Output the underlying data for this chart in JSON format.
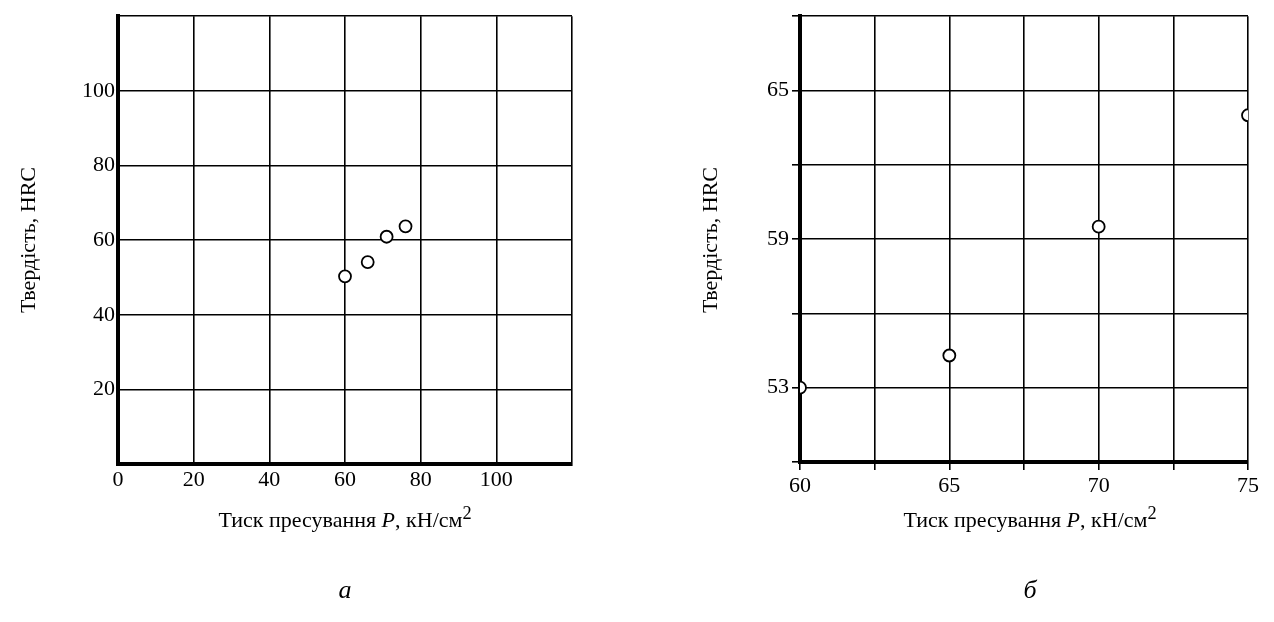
{
  "chart_data": [
    {
      "type": "scatter",
      "xlabel": "Тиск пресування P, кН/см$^{2}$",
      "ylabel": "Твердість, HRC",
      "annotations": [
        "а"
      ],
      "x": [
        60,
        66,
        71,
        76
      ],
      "values": [
        50.3,
        54.1,
        60.9,
        63.7
      ],
      "color": "#000000",
      "marker": "circle",
      "grid": true,
      "legend": false,
      "xlim": [
        0,
        120
      ],
      "xticks": [
        0,
        20,
        40,
        60,
        80,
        100,
        {
          "value": 120,
          "label": null
        }
      ],
      "ylim": [
        0,
        120
      ],
      "yticks": [
        {
          "value": 0,
          "label": null
        },
        20,
        40,
        60,
        80,
        100,
        {
          "value": 120,
          "label": null
        }
      ]
    },
    {
      "type": "scatter",
      "xlabel": "Тиск пресування P, кН/см$^{2}$",
      "ylabel": "Твердість, HRC",
      "annotations": [
        "б"
      ],
      "x": [
        60,
        65,
        70,
        75
      ],
      "values": [
        53,
        54.3,
        59.5,
        64
      ],
      "color": "#000000",
      "marker": "circle",
      "grid": true,
      "legend": false,
      "xlim": [
        60,
        75
      ],
      "xticks": [
        60,
        {
          "value": 62.5,
          "label": null
        },
        65,
        {
          "value": 67.5,
          "label": null
        },
        70,
        {
          "value": 72.5,
          "label": null
        },
        75
      ],
      "ylim": [
        50,
        68
      ],
      "yticks": [
        {
          "value": 50,
          "label": null
        },
        53,
        {
          "value": 56,
          "label": null
        },
        59,
        {
          "value": 62,
          "label": null
        },
        65,
        {
          "value": 68,
          "label": null
        }
      ]
    }
  ]
}
